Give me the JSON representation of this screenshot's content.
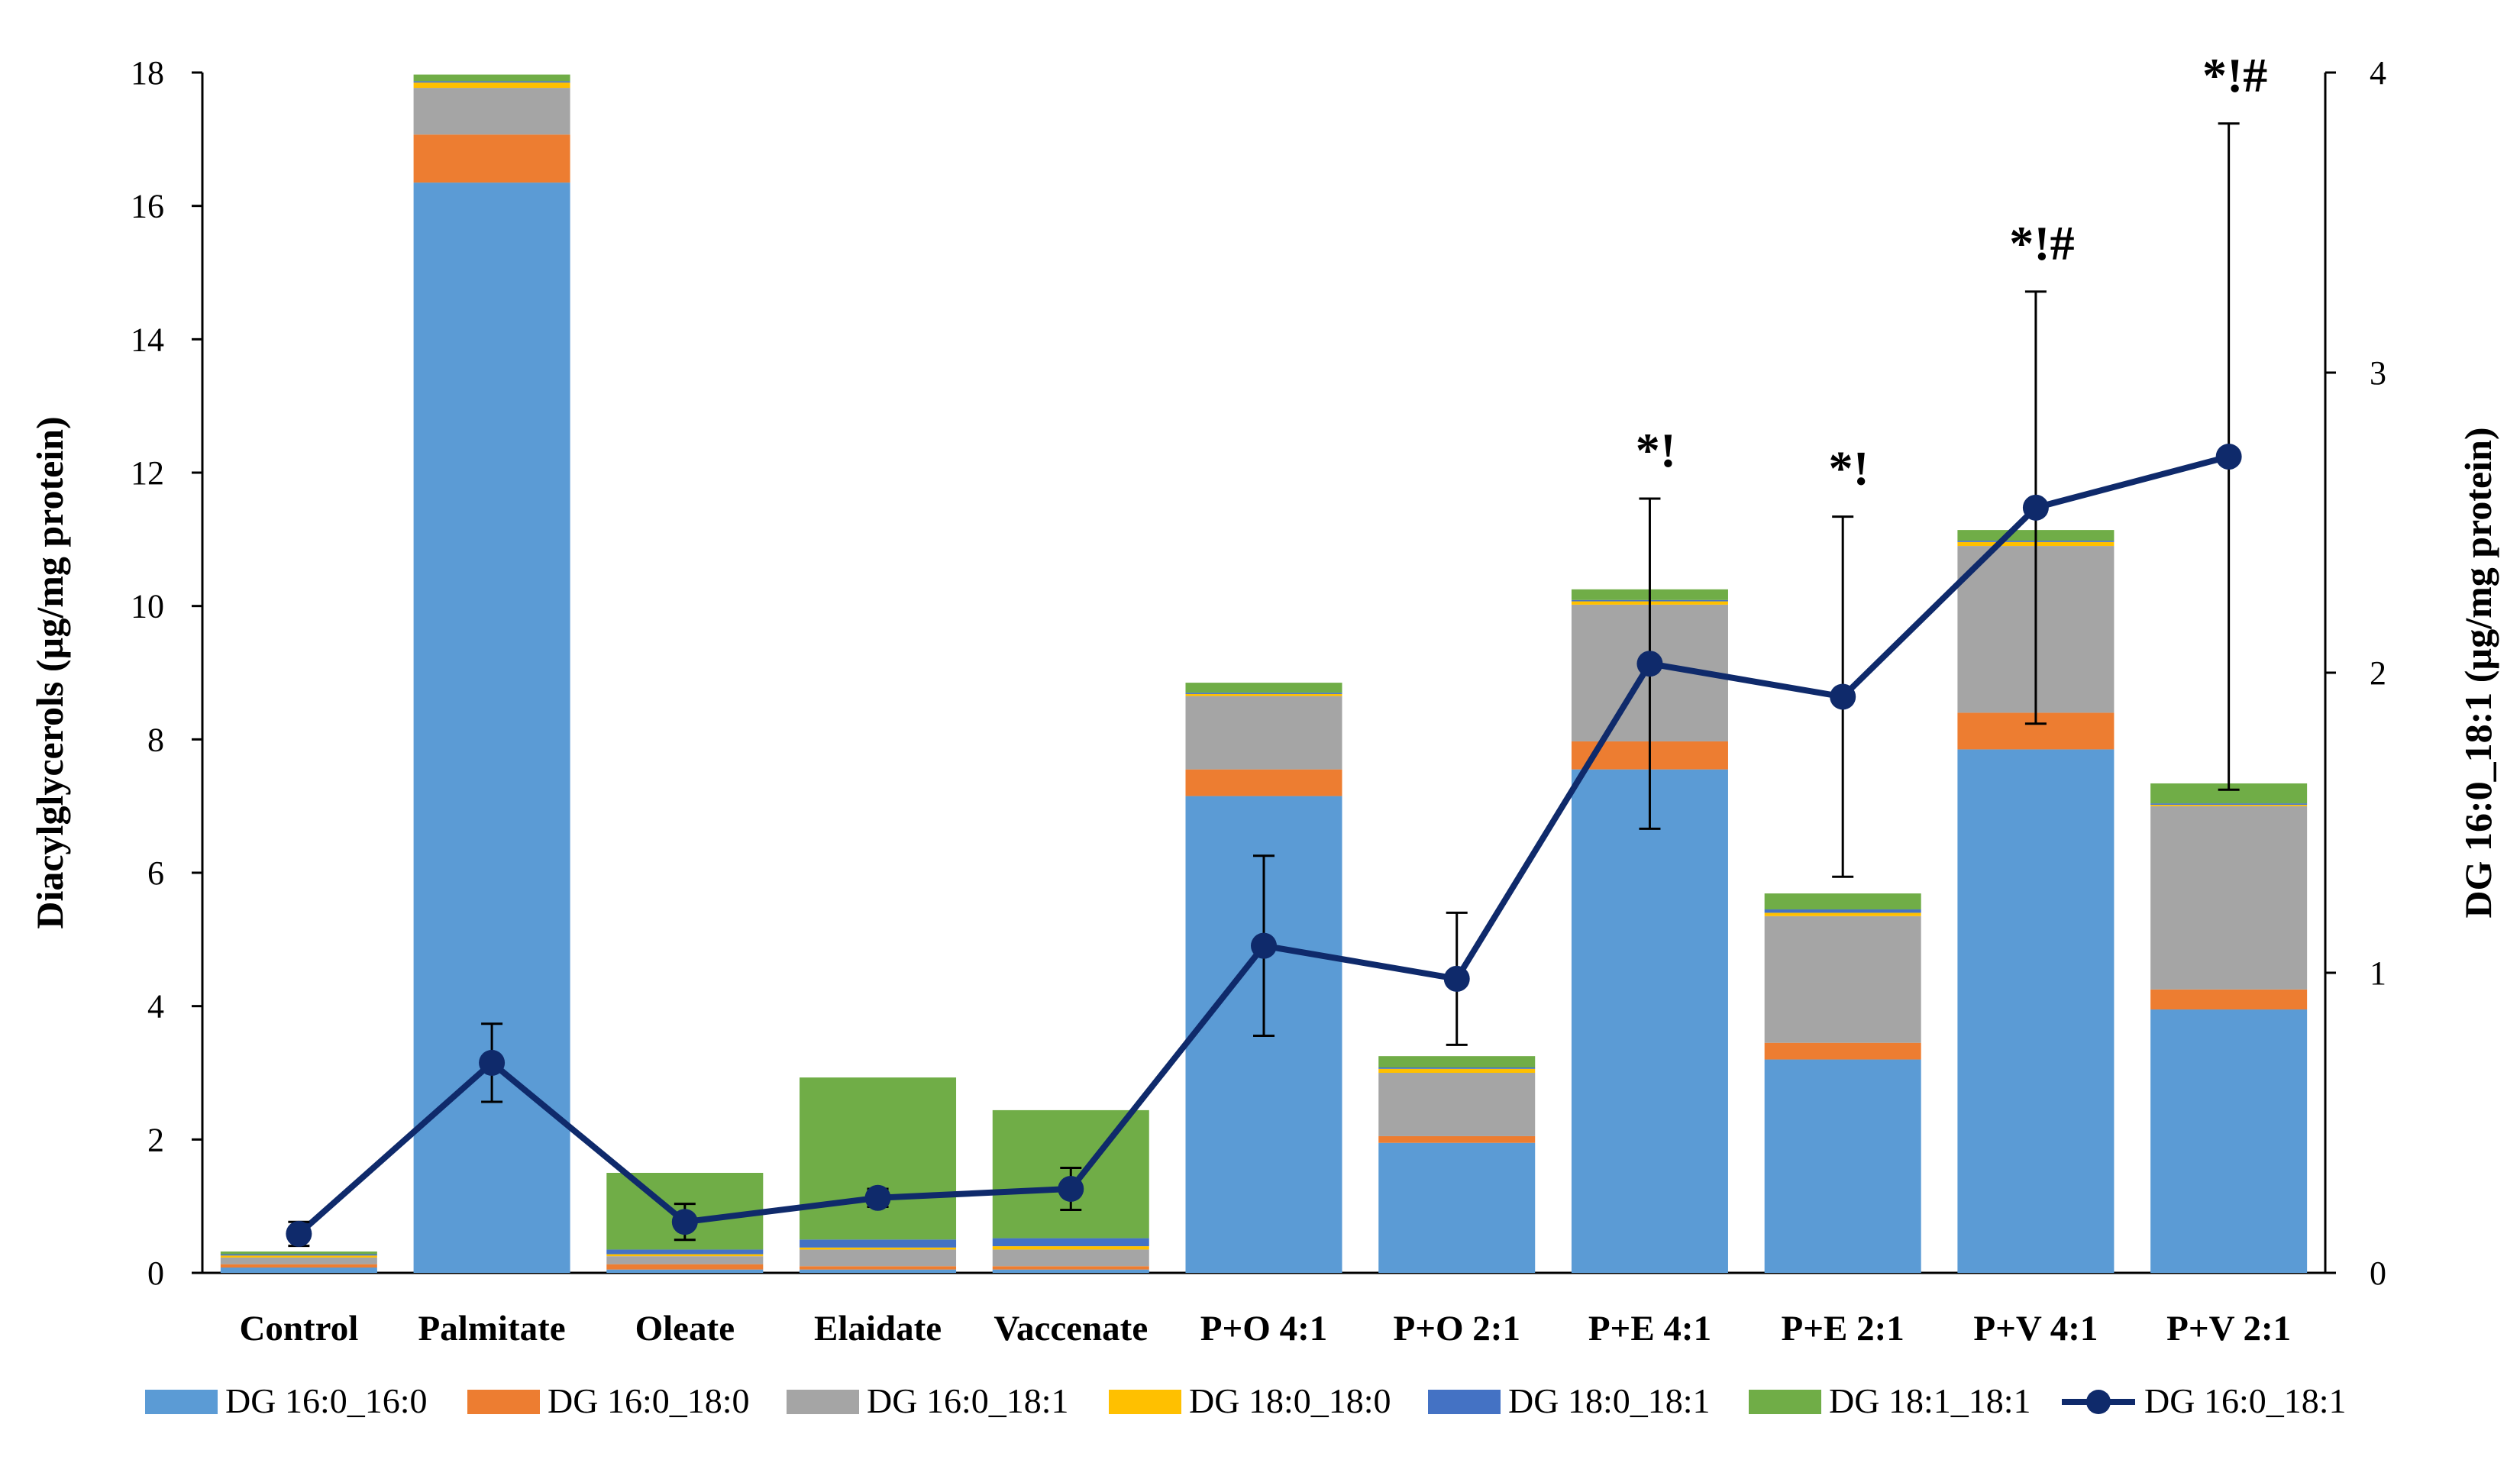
{
  "chart_data": {
    "type": "bar",
    "stacked": true,
    "categories": [
      "Control",
      "Palmitate",
      "Oleate",
      "Elaidate",
      "Vaccenate",
      "P+O 4:1",
      "P+O 2:1",
      "P+E 4:1",
      "P+E 2:1",
      "P+V 4:1",
      "P+V 2:1"
    ],
    "ylabel": "Diacylglycerols  (µg/mg protein)",
    "y2label": "DG 16:0_18:1 (µg/mg protein)",
    "ylim": [
      0,
      18
    ],
    "y2lim": [
      0,
      4
    ],
    "yticks": [
      "0",
      "2",
      "4",
      "6",
      "8",
      "10",
      "12",
      "14",
      "16",
      "18"
    ],
    "y2ticks": [
      "0",
      "1",
      "2",
      "3",
      "4"
    ],
    "legend_position": "bottom",
    "series": [
      {
        "name": "DG 16:0_16:0",
        "color": "#5B9BD5",
        "values": [
          0.08,
          16.35,
          0.05,
          0.05,
          0.05,
          7.15,
          1.95,
          7.55,
          3.2,
          7.85,
          3.95
        ]
      },
      {
        "name": "DG 16:0_18:0",
        "color": "#ED7D31",
        "values": [
          0.05,
          0.72,
          0.08,
          0.05,
          0.05,
          0.4,
          0.1,
          0.42,
          0.25,
          0.55,
          0.3
        ]
      },
      {
        "name": "DG 16:0_18:1",
        "color": "#A5A5A5",
        "values": [
          0.1,
          0.7,
          0.12,
          0.25,
          0.25,
          1.1,
          0.95,
          2.05,
          1.9,
          2.5,
          2.75
        ]
      },
      {
        "name": "DG 18:0_18:0",
        "color": "#FFC000",
        "values": [
          0.03,
          0.08,
          0.03,
          0.03,
          0.05,
          0.03,
          0.06,
          0.05,
          0.05,
          0.06,
          0.02
        ]
      },
      {
        "name": "DG 18:0_18:1",
        "color": "#4472C4",
        "values": [
          0.02,
          0.02,
          0.07,
          0.12,
          0.12,
          0.02,
          0.02,
          0.02,
          0.05,
          0.02,
          0.02
        ]
      },
      {
        "name": "DG 18:1_18:1",
        "color": "#70AD47",
        "values": [
          0.04,
          0.1,
          1.15,
          2.43,
          1.92,
          0.15,
          0.17,
          0.16,
          0.24,
          0.16,
          0.3
        ]
      }
    ],
    "line": {
      "name": "DG 16:0_18:1",
      "color": "#0F2A6B",
      "axis": "y2",
      "values": [
        0.13,
        0.7,
        0.17,
        0.25,
        0.28,
        1.09,
        0.98,
        2.03,
        1.92,
        2.55,
        2.72
      ],
      "error": [
        0.04,
        0.13,
        0.06,
        0.03,
        0.07,
        0.3,
        0.22,
        0.55,
        0.6,
        0.72,
        1.11
      ]
    },
    "annotations": [
      {
        "category": "P+E 4:1",
        "text": "*!"
      },
      {
        "category": "P+E 2:1",
        "text": "*!"
      },
      {
        "category": "P+V 4:1",
        "text": "*!#"
      },
      {
        "category": "P+V 2:1",
        "text": "*!#"
      }
    ]
  }
}
